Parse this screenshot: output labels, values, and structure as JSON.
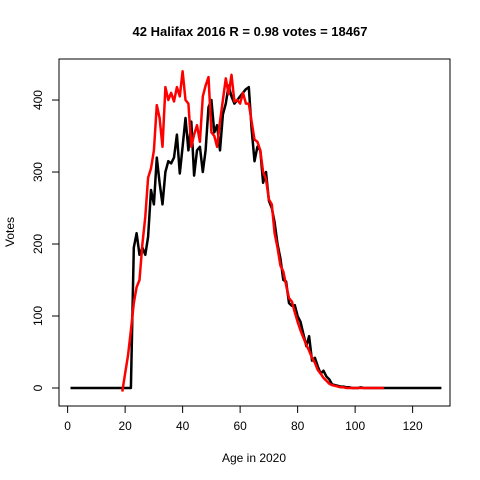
{
  "chart_data": {
    "type": "line",
    "title": "42 Halifax 2016 R = 0.98 votes = 18467",
    "xlabel": "Age in 2020",
    "ylabel": "Votes",
    "xlim": [
      -3,
      133
    ],
    "ylim": [
      -25,
      457
    ],
    "xticks": [
      0,
      20,
      40,
      60,
      80,
      100,
      120
    ],
    "yticks": [
      0,
      100,
      200,
      300,
      400
    ],
    "grid": false,
    "legend": "none",
    "series": [
      {
        "color": "#000000",
        "x": [
          1,
          21,
          22,
          23,
          24,
          25,
          26,
          27,
          28,
          29,
          30,
          31,
          32,
          33,
          34,
          35,
          36,
          37,
          38,
          39,
          40,
          41,
          42,
          43,
          44,
          45,
          46,
          47,
          48,
          49,
          50,
          51,
          52,
          53,
          54,
          55,
          56,
          57,
          58,
          59,
          60,
          61,
          62,
          63,
          64,
          65,
          66,
          67,
          68,
          69,
          70,
          71,
          72,
          73,
          74,
          75,
          76,
          77,
          78,
          79,
          80,
          81,
          82,
          83,
          84,
          85,
          86,
          87,
          88,
          89,
          90,
          91,
          92,
          93,
          94,
          95,
          96,
          97,
          98,
          99,
          100,
          101,
          102,
          103,
          104,
          105,
          106,
          107,
          108,
          109,
          110,
          111,
          112,
          113,
          114,
          115,
          116,
          117,
          118,
          119,
          120,
          121,
          122,
          123,
          124,
          125,
          126,
          127,
          128,
          129,
          130
        ],
        "y": [
          0,
          0,
          0,
          195,
          215,
          185,
          195,
          185,
          210,
          275,
          255,
          320,
          285,
          255,
          300,
          315,
          312,
          320,
          352,
          298,
          335,
          375,
          330,
          370,
          295,
          330,
          335,
          300,
          330,
          390,
          400,
          355,
          365,
          330,
          380,
          395,
          420,
          405,
          395,
          400,
          405,
          410,
          415,
          418,
          360,
          315,
          335,
          330,
          285,
          300,
          260,
          250,
          230,
          200,
          180,
          150,
          148,
          118,
          114,
          115,
          100,
          92,
          75,
          58,
          72,
          38,
          42,
          30,
          20,
          24,
          16,
          12,
          5,
          4,
          3,
          2,
          2,
          1,
          1,
          0,
          0,
          0,
          1,
          0,
          0,
          0,
          0,
          0,
          0,
          0,
          0,
          0,
          0,
          0,
          0,
          0,
          0,
          0,
          0,
          0,
          0,
          0,
          0,
          0,
          0,
          0,
          0,
          0,
          0,
          0,
          0
        ]
      },
      {
        "color": "#ff0000",
        "x": [
          19,
          20,
          21,
          22,
          23,
          24,
          25,
          26,
          27,
          28,
          29,
          30,
          31,
          32,
          33,
          34,
          35,
          36,
          37,
          38,
          39,
          40,
          41,
          42,
          43,
          44,
          45,
          46,
          47,
          48,
          49,
          50,
          51,
          52,
          53,
          54,
          55,
          56,
          57,
          58,
          59,
          60,
          61,
          62,
          63,
          64,
          65,
          66,
          67,
          68,
          69,
          70,
          71,
          72,
          73,
          74,
          75,
          76,
          77,
          78,
          79,
          80,
          81,
          82,
          83,
          84,
          85,
          86,
          87,
          88,
          89,
          90,
          91,
          92,
          93,
          94,
          95,
          96,
          97,
          98,
          99,
          100,
          101,
          102,
          103,
          104,
          105,
          106,
          107,
          108,
          109,
          110
        ],
        "y": [
          -5,
          20,
          45,
          80,
          118,
          140,
          150,
          200,
          238,
          292,
          305,
          330,
          393,
          375,
          335,
          418,
          400,
          410,
          398,
          418,
          405,
          440,
          400,
          395,
          335,
          352,
          365,
          342,
          405,
          420,
          432,
          355,
          350,
          335,
          370,
          400,
          430,
          408,
          435,
          398,
          400,
          395,
          410,
          395,
          395,
          370,
          345,
          342,
          330,
          300,
          290,
          262,
          255,
          215,
          195,
          170,
          162,
          143,
          125,
          120,
          105,
          92,
          80,
          70,
          60,
          52,
          42,
          35,
          25,
          20,
          14,
          10,
          6,
          4,
          3,
          2,
          1,
          1,
          0,
          0,
          0,
          0,
          0,
          0,
          0,
          0,
          0,
          0,
          0,
          0,
          0,
          0
        ]
      }
    ]
  }
}
